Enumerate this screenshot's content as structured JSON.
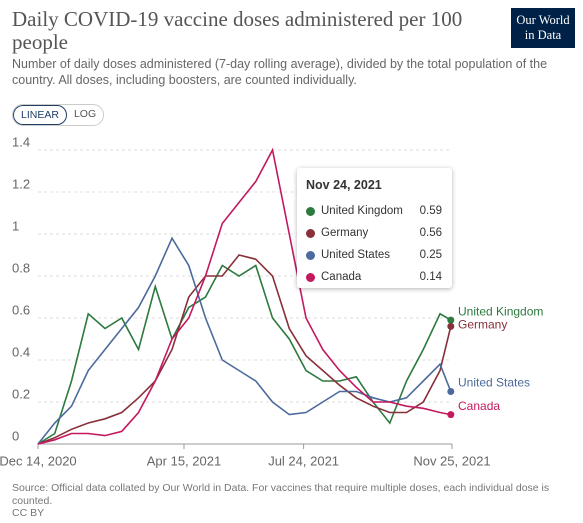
{
  "header": {
    "title": "Daily COVID-19 vaccine doses administered per 100 people",
    "subtitle": "Number of daily doses administered (7-day rolling average), divided by the total population of the country. All doses, including boosters, are counted individually.",
    "logo_line1": "Our World",
    "logo_line2": "in Data",
    "scale_buttons": [
      "LINEAR",
      "LOG"
    ]
  },
  "chart_data": {
    "type": "line",
    "x": [
      "2020-12-14",
      "2020-12-28",
      "2021-01-11",
      "2021-01-25",
      "2021-02-08",
      "2021-02-22",
      "2021-03-08",
      "2021-03-22",
      "2021-04-05",
      "2021-04-19",
      "2021-05-03",
      "2021-05-17",
      "2021-05-31",
      "2021-06-14",
      "2021-06-28",
      "2021-07-12",
      "2021-07-26",
      "2021-08-09",
      "2021-08-23",
      "2021-09-06",
      "2021-09-20",
      "2021-10-04",
      "2021-10-18",
      "2021-11-01",
      "2021-11-15",
      "2021-11-24"
    ],
    "series": [
      {
        "name": "United Kingdom",
        "color": "#2c7a3f",
        "values": [
          0,
          0.05,
          0.3,
          0.62,
          0.55,
          0.6,
          0.45,
          0.75,
          0.5,
          0.65,
          0.7,
          0.85,
          0.8,
          0.85,
          0.6,
          0.5,
          0.35,
          0.3,
          0.3,
          0.32,
          0.2,
          0.1,
          0.3,
          0.45,
          0.62,
          0.59
        ]
      },
      {
        "name": "Germany",
        "color": "#883039",
        "values": [
          0,
          0.03,
          0.07,
          0.1,
          0.12,
          0.15,
          0.22,
          0.3,
          0.45,
          0.7,
          0.8,
          0.8,
          0.9,
          0.88,
          0.8,
          0.55,
          0.42,
          0.35,
          0.28,
          0.22,
          0.18,
          0.15,
          0.15,
          0.2,
          0.35,
          0.56
        ]
      },
      {
        "name": "United States",
        "color": "#4c6a9c",
        "values": [
          0,
          0.1,
          0.18,
          0.35,
          0.45,
          0.55,
          0.65,
          0.8,
          0.98,
          0.85,
          0.6,
          0.4,
          0.35,
          0.3,
          0.2,
          0.14,
          0.15,
          0.2,
          0.25,
          0.25,
          0.22,
          0.2,
          0.22,
          0.3,
          0.38,
          0.25
        ]
      },
      {
        "name": "Canada",
        "color": "#c4185f",
        "values": [
          0,
          0.02,
          0.05,
          0.05,
          0.04,
          0.06,
          0.15,
          0.3,
          0.5,
          0.6,
          0.8,
          1.05,
          1.15,
          1.25,
          1.4,
          1.0,
          0.6,
          0.45,
          0.35,
          0.27,
          0.2,
          0.2,
          0.18,
          0.17,
          0.15,
          0.14
        ]
      }
    ],
    "xlim": [
      "2020-12-14",
      "2021-11-25"
    ],
    "xticks": [
      {
        "value": "2020-12-14",
        "label": "Dec 14, 2020"
      },
      {
        "value": "2021-04-15",
        "label": "Apr 15, 2021"
      },
      {
        "value": "2021-07-24",
        "label": "Jul 24, 2021"
      },
      {
        "value": "2021-11-25",
        "label": "Nov 25, 2021"
      }
    ],
    "ylim": [
      0,
      1.4
    ],
    "yticks": [
      0,
      0.2,
      0.4,
      0.6,
      0.8,
      1,
      1.2,
      1.4
    ],
    "grid": true,
    "tooltip_date": "Nov 24, 2021"
  },
  "footer": {
    "source": "Source: Official data collated by Our World in Data. For vaccines that require multiple doses, each individual dose is counted.",
    "license": "CC BY"
  }
}
